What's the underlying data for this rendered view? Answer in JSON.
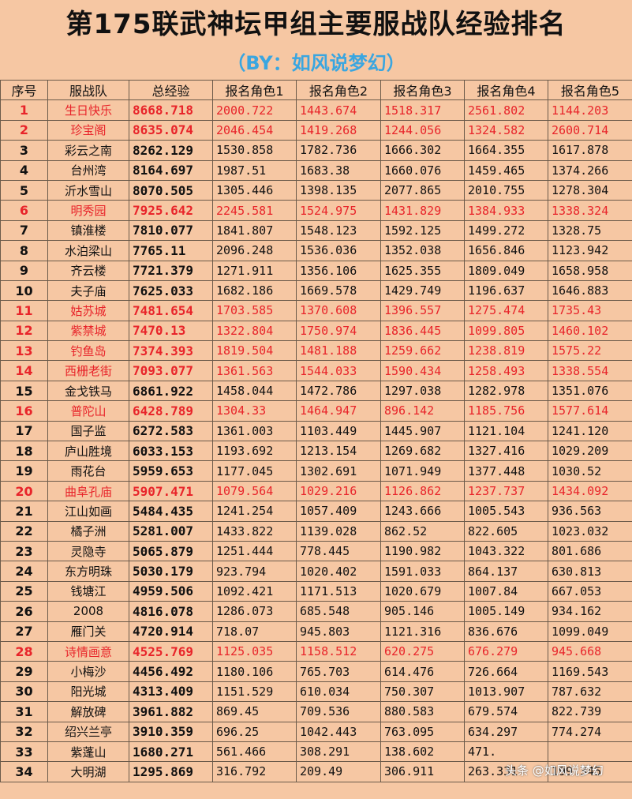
{
  "title": "第175联武神坛甲组主要服战队经验排名",
  "subtitle": "（BY：如风说梦幻）",
  "headers": [
    "序号",
    "服战队",
    "总经验",
    "报名角色1",
    "报名角色2",
    "报名角色3",
    "报名角色4",
    "报名角色5"
  ],
  "colors": {
    "highlight": "#e8242a",
    "normal": "#111111",
    "background": "#f6c7a3",
    "subtitle": "#3aa6e0"
  },
  "rows": [
    {
      "idx": "1",
      "team": "生日快乐",
      "total": "8668.718",
      "r1": "2000.722",
      "r2": "1443.674",
      "r3": "1518.317",
      "r4": "2561.802",
      "r5": "1144.203",
      "red": true
    },
    {
      "idx": "2",
      "team": "珍宝阁",
      "total": "8635.074",
      "r1": "2046.454",
      "r2": "1419.268",
      "r3": "1244.056",
      "r4": "1324.582",
      "r5": "2600.714",
      "red": true
    },
    {
      "idx": "3",
      "team": "彩云之南",
      "total": "8262.129",
      "r1": "1530.858",
      "r2": "1782.736",
      "r3": "1666.302",
      "r4": "1664.355",
      "r5": "1617.878",
      "red": false
    },
    {
      "idx": "4",
      "team": "台州湾",
      "total": "8164.697",
      "r1": "1987.51",
      "r2": "1683.38",
      "r3": "1660.076",
      "r4": "1459.465",
      "r5": "1374.266",
      "red": false
    },
    {
      "idx": "5",
      "team": "沂水雪山",
      "total": "8070.505",
      "r1": "1305.446",
      "r2": "1398.135",
      "r3": "2077.865",
      "r4": "2010.755",
      "r5": "1278.304",
      "red": false
    },
    {
      "idx": "6",
      "team": "明秀园",
      "total": "7925.642",
      "r1": "2245.581",
      "r2": "1524.975",
      "r3": "1431.829",
      "r4": "1384.933",
      "r5": "1338.324",
      "red": true
    },
    {
      "idx": "7",
      "team": "镇淮楼",
      "total": "7810.077",
      "r1": "1841.807",
      "r2": "1548.123",
      "r3": "1592.125",
      "r4": "1499.272",
      "r5": "1328.75",
      "red": false
    },
    {
      "idx": "8",
      "team": "水泊梁山",
      "total": "7765.11",
      "r1": "2096.248",
      "r2": "1536.036",
      "r3": "1352.038",
      "r4": "1656.846",
      "r5": "1123.942",
      "red": false
    },
    {
      "idx": "9",
      "team": "齐云楼",
      "total": "7721.379",
      "r1": "1271.911",
      "r2": "1356.106",
      "r3": "1625.355",
      "r4": "1809.049",
      "r5": "1658.958",
      "red": false
    },
    {
      "idx": "10",
      "team": "夫子庙",
      "total": "7625.033",
      "r1": "1682.186",
      "r2": "1669.578",
      "r3": "1429.749",
      "r4": "1196.637",
      "r5": "1646.883",
      "red": false
    },
    {
      "idx": "11",
      "team": "姑苏城",
      "total": "7481.654",
      "r1": "1703.585",
      "r2": "1370.608",
      "r3": "1396.557",
      "r4": "1275.474",
      "r5": "1735.43",
      "red": true
    },
    {
      "idx": "12",
      "team": "紫禁城",
      "total": "7470.13",
      "r1": "1322.804",
      "r2": "1750.974",
      "r3": "1836.445",
      "r4": "1099.805",
      "r5": "1460.102",
      "red": true
    },
    {
      "idx": "13",
      "team": "钓鱼岛",
      "total": "7374.393",
      "r1": "1819.504",
      "r2": "1481.188",
      "r3": "1259.662",
      "r4": "1238.819",
      "r5": "1575.22",
      "red": true
    },
    {
      "idx": "14",
      "team": "西栅老街",
      "total": "7093.077",
      "r1": "1361.563",
      "r2": "1544.033",
      "r3": "1590.434",
      "r4": "1258.493",
      "r5": "1338.554",
      "red": true
    },
    {
      "idx": "15",
      "team": "金戈铁马",
      "total": "6861.922",
      "r1": "1458.044",
      "r2": "1472.786",
      "r3": "1297.038",
      "r4": "1282.978",
      "r5": "1351.076",
      "red": false
    },
    {
      "idx": "16",
      "team": "普陀山",
      "total": "6428.789",
      "r1": "1304.33",
      "r2": "1464.947",
      "r3": "896.142",
      "r4": "1185.756",
      "r5": "1577.614",
      "red": true
    },
    {
      "idx": "17",
      "team": "国子监",
      "total": "6272.583",
      "r1": "1361.003",
      "r2": "1103.449",
      "r3": "1445.907",
      "r4": "1121.104",
      "r5": "1241.120",
      "red": false
    },
    {
      "idx": "18",
      "team": "庐山胜境",
      "total": "6033.153",
      "r1": "1193.692",
      "r2": "1213.154",
      "r3": "1269.682",
      "r4": "1327.416",
      "r5": "1029.209",
      "red": false
    },
    {
      "idx": "19",
      "team": "雨花台",
      "total": "5959.653",
      "r1": "1177.045",
      "r2": "1302.691",
      "r3": "1071.949",
      "r4": "1377.448",
      "r5": "1030.52",
      "red": false
    },
    {
      "idx": "20",
      "team": "曲阜孔庙",
      "total": "5907.471",
      "r1": "1079.564",
      "r2": "1029.216",
      "r3": "1126.862",
      "r4": "1237.737",
      "r5": "1434.092",
      "red": true
    },
    {
      "idx": "21",
      "team": "江山如画",
      "total": "5484.435",
      "r1": "1241.254",
      "r2": "1057.409",
      "r3": "1243.666",
      "r4": "1005.543",
      "r5": "936.563",
      "red": false
    },
    {
      "idx": "22",
      "team": "橘子洲",
      "total": "5281.007",
      "r1": "1433.822",
      "r2": "1139.028",
      "r3": "862.52",
      "r4": "822.605",
      "r5": "1023.032",
      "red": false
    },
    {
      "idx": "23",
      "team": "灵隐寺",
      "total": "5065.879",
      "r1": "1251.444",
      "r2": "778.445",
      "r3": "1190.982",
      "r4": "1043.322",
      "r5": "801.686",
      "red": false
    },
    {
      "idx": "24",
      "team": "东方明珠",
      "total": "5030.179",
      "r1": "923.794",
      "r2": "1020.402",
      "r3": "1591.033",
      "r4": "864.137",
      "r5": "630.813",
      "red": false
    },
    {
      "idx": "25",
      "team": "钱塘江",
      "total": "4959.506",
      "r1": "1092.421",
      "r2": "1171.513",
      "r3": "1020.679",
      "r4": "1007.84",
      "r5": "667.053",
      "red": false
    },
    {
      "idx": "26",
      "team": "2008",
      "total": "4816.078",
      "r1": "1286.073",
      "r2": "685.548",
      "r3": "905.146",
      "r4": "1005.149",
      "r5": "934.162",
      "red": false
    },
    {
      "idx": "27",
      "team": "雁门关",
      "total": "4720.914",
      "r1": "718.07",
      "r2": "945.803",
      "r3": "1121.316",
      "r4": "836.676",
      "r5": "1099.049",
      "red": false
    },
    {
      "idx": "28",
      "team": "诗情画意",
      "total": "4525.769",
      "r1": "1125.035",
      "r2": "1158.512",
      "r3": "620.275",
      "r4": "676.279",
      "r5": "945.668",
      "red": true
    },
    {
      "idx": "29",
      "team": "小梅沙",
      "total": "4456.492",
      "r1": "1180.106",
      "r2": "765.703",
      "r3": "614.476",
      "r4": "726.664",
      "r5": "1169.543",
      "red": false
    },
    {
      "idx": "30",
      "team": "阳光城",
      "total": "4313.409",
      "r1": "1151.529",
      "r2": "610.034",
      "r3": "750.307",
      "r4": "1013.907",
      "r5": "787.632",
      "red": false
    },
    {
      "idx": "31",
      "team": "解放碑",
      "total": "3961.882",
      "r1": "869.45",
      "r2": "709.536",
      "r3": "880.583",
      "r4": "679.574",
      "r5": "822.739",
      "red": false
    },
    {
      "idx": "32",
      "team": "绍兴兰亭",
      "total": "3910.359",
      "r1": "696.25",
      "r2": "1042.443",
      "r3": "763.095",
      "r4": "634.297",
      "r5": "774.274",
      "red": false
    },
    {
      "idx": "33",
      "team": "紫蓬山",
      "total": "1680.271",
      "r1": "561.466",
      "r2": "308.291",
      "r3": "138.602",
      "r4": "471.",
      "r5": "",
      "red": false
    },
    {
      "idx": "34",
      "team": "大明湖",
      "total": "1295.869",
      "r1": "316.792",
      "r2": "209.49",
      "r3": "306.911",
      "r4": "263.331",
      "r5": "199.345",
      "red": false
    }
  ],
  "watermark": "头条 @如风说梦幻"
}
